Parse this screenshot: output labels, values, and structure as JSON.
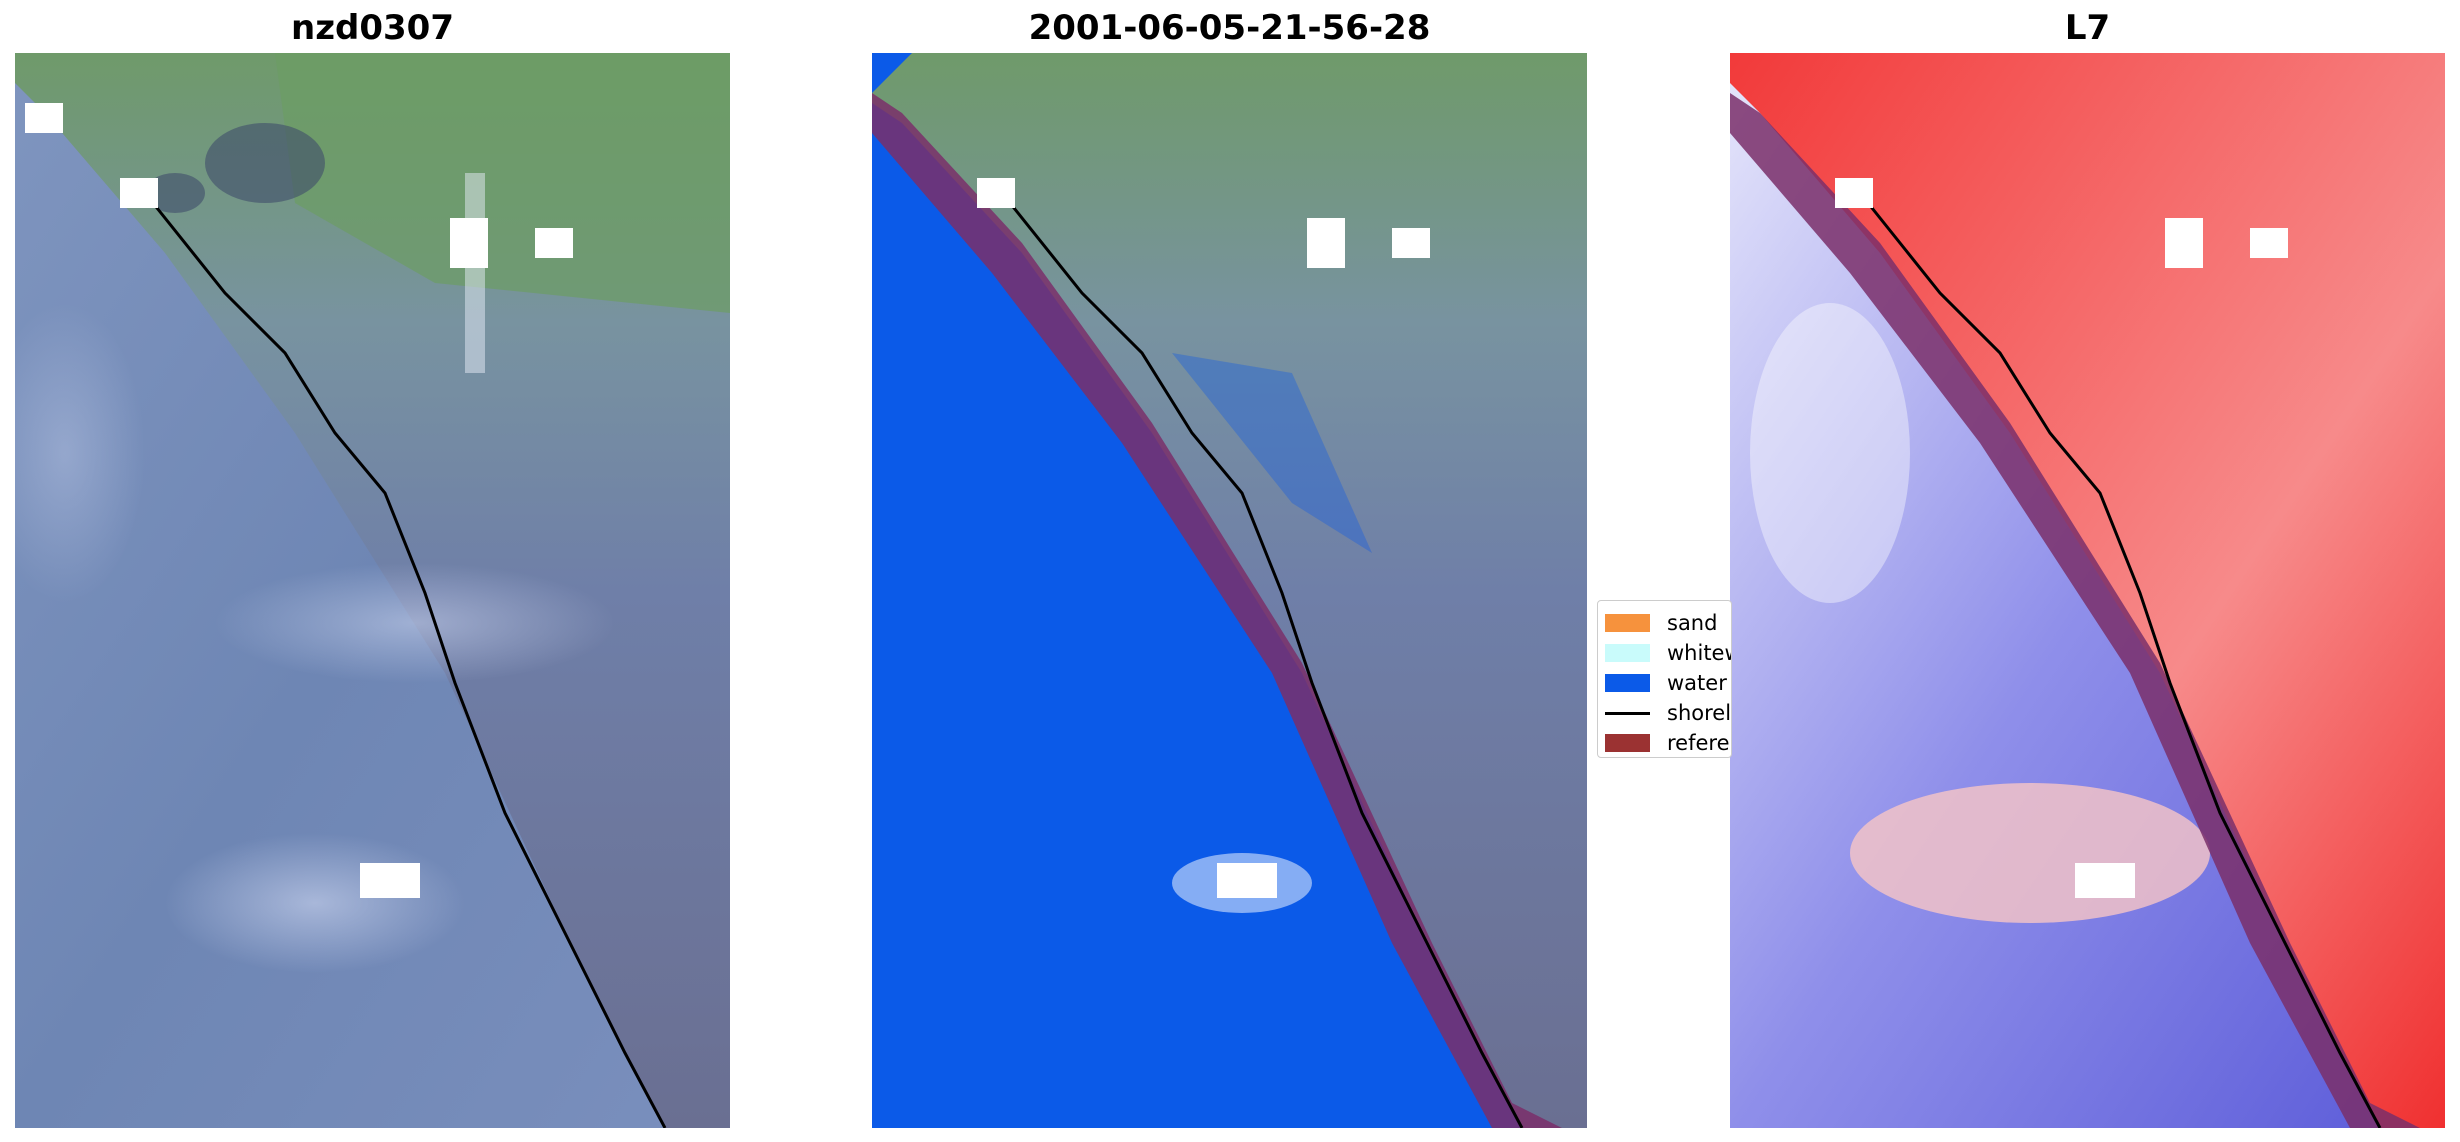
{
  "panels": [
    {
      "title": "nzd0307"
    },
    {
      "title": "2001-06-05-21-56-28"
    },
    {
      "title": "L7"
    }
  ],
  "legend": {
    "items": [
      {
        "label": "sand",
        "color": "#f6923d"
      },
      {
        "label": "whitewater",
        "color": "#c9fbfb"
      },
      {
        "label": "water",
        "color": "#0b5ae8"
      },
      {
        "label": "shoreline",
        "color": "#000000"
      },
      {
        "label": "reference shoreline buffer",
        "color": "#9b3232"
      }
    ]
  },
  "colors": {
    "ocean_rgb": "#6e86b4",
    "land_green": "#6f9a6a",
    "water_class": "#0b5ae8",
    "index_water": "#6f6fe0",
    "index_land": "#f23a3a",
    "buffer": "#7a2f6a",
    "cloud": "#ffffff"
  }
}
